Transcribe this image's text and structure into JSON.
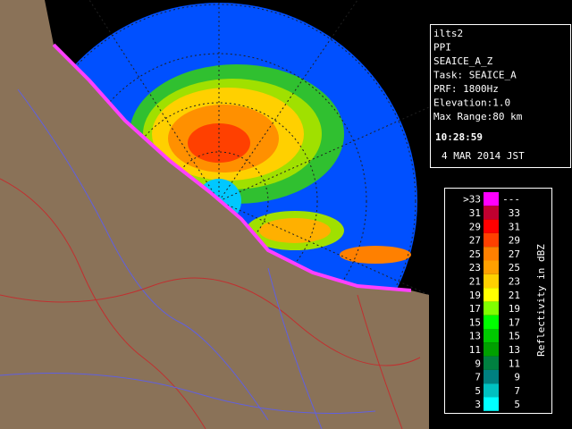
{
  "info": {
    "lines": [
      "ilts2",
      "PPI",
      "SEAICE_A_Z",
      "Task: SEAICE_A",
      "PRF: 1800Hz",
      "Elevation:1.0",
      "Max Range:80 km"
    ],
    "time": "10:28:59",
    "date": "4 MAR 2014 JST"
  },
  "legend": {
    "title": "Reflectivity in dBZ",
    "rows": [
      {
        "low": ">33",
        "high": "---",
        "color": "#ff00ff"
      },
      {
        "low": "31",
        "high": "33",
        "color": "#c00030"
      },
      {
        "low": "29",
        "high": "31",
        "color": "#ff0000"
      },
      {
        "low": "27",
        "high": "29",
        "color": "#ff4000"
      },
      {
        "low": "25",
        "high": "27",
        "color": "#ff8000"
      },
      {
        "low": "23",
        "high": "25",
        "color": "#ffa000"
      },
      {
        "low": "21",
        "high": "23",
        "color": "#ffd000"
      },
      {
        "low": "19",
        "high": "21",
        "color": "#ffff00"
      },
      {
        "low": "17",
        "high": "19",
        "color": "#80ff00"
      },
      {
        "low": "15",
        "high": "17",
        "color": "#00ff00"
      },
      {
        "low": "13",
        "high": "15",
        "color": "#00c800"
      },
      {
        "low": "11",
        "high": "13",
        "color": "#00a000"
      },
      {
        "low": "9",
        "high": "11",
        "color": "#008040"
      },
      {
        "low": "7",
        "high": "9",
        "color": "#008080"
      },
      {
        "low": "5",
        "high": "7",
        "color": "#00c0c0"
      },
      {
        "low": "3",
        "high": "5",
        "color": "#00ffff"
      }
    ]
  }
}
